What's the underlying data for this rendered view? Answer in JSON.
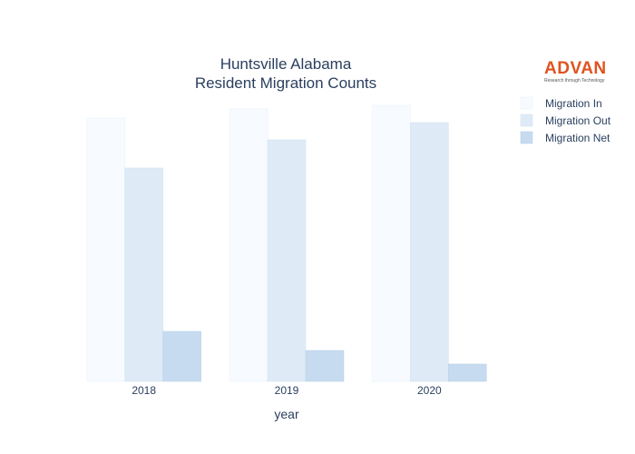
{
  "chart_data": {
    "type": "bar",
    "title_lines": [
      "Huntsville Alabama",
      "Resident Migration Counts"
    ],
    "xlabel": "year",
    "ylabel": "",
    "categories": [
      "2018",
      "2019",
      "2020"
    ],
    "series": [
      {
        "name": "Migration In",
        "values": [
          290,
          300,
          304
        ],
        "color": "#f7fbff",
        "stroke": "#eaf2fb"
      },
      {
        "name": "Migration Out",
        "values": [
          235,
          266,
          285
        ],
        "color": "#deebf7",
        "stroke": "#d4e4f4"
      },
      {
        "name": "Migration Net",
        "values": [
          55,
          34,
          19
        ],
        "color": "#c6dbef",
        "stroke": "#bcd3ea"
      }
    ],
    "ylim": [
      0,
      320
    ],
    "show_y_axis": false,
    "grid": false,
    "legend_position": "right"
  },
  "logo": {
    "name": "ADVAN",
    "tagline": "Research through Technology"
  }
}
